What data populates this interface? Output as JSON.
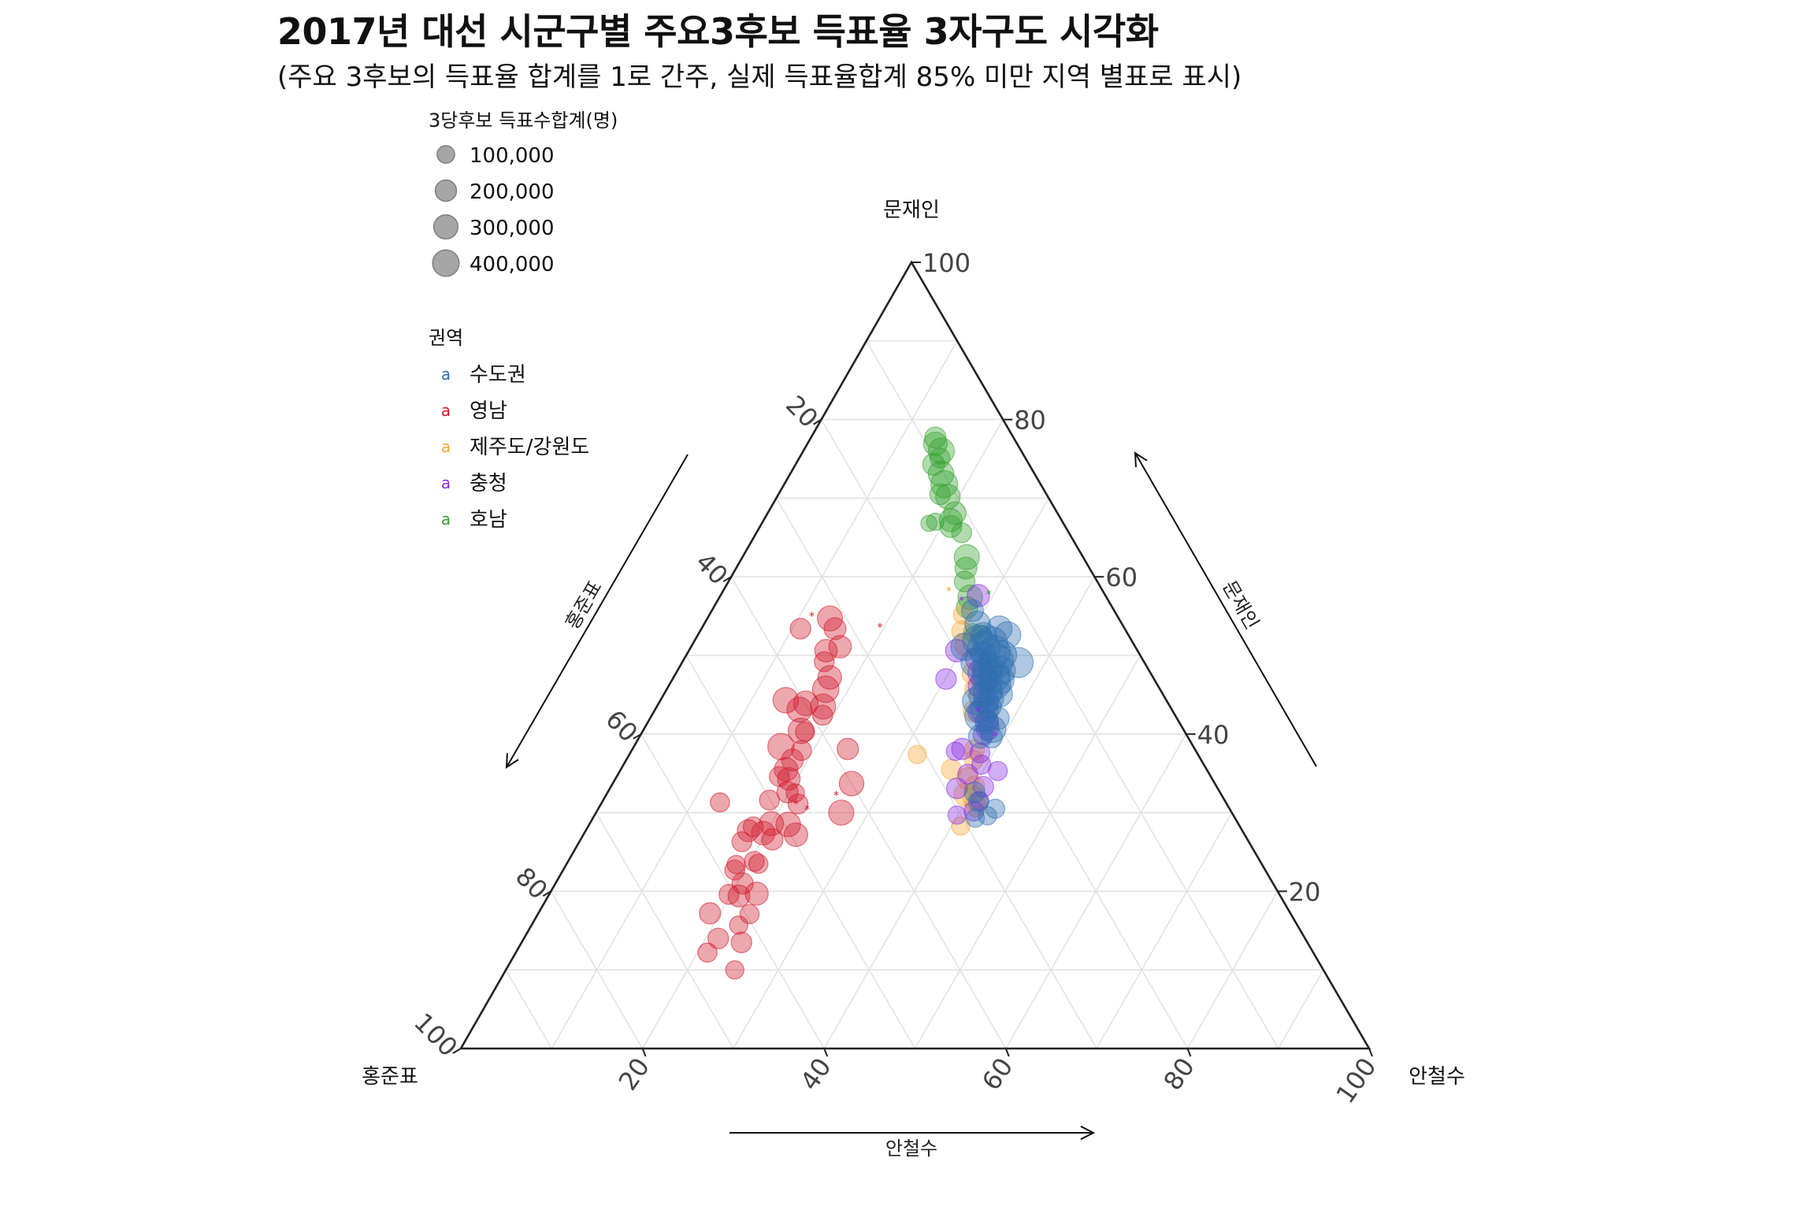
{
  "title": "2017년 대선 시군구별 주요3후보 득표율 3자구도 시각화",
  "subtitle": "(주요 3후보의 득표율 합계를 1로 간주, 실제 득표율합계 85% 미만 지역 별표로 표시)",
  "chart_data": {
    "type": "scatter",
    "subtype": "ternary-bubble",
    "axes": {
      "top": {
        "name": "문재인",
        "ticks": [
          20,
          40,
          60,
          80,
          100
        ]
      },
      "left": {
        "name": "홍준표",
        "ticks": [
          20,
          40,
          60,
          80,
          100
        ]
      },
      "right": {
        "name": "안철수",
        "ticks": [
          20,
          40,
          60,
          80,
          100
        ]
      }
    },
    "arrow_labels": {
      "left": "홍준표",
      "right": "문재인",
      "bottom": "안철수"
    },
    "grid": true,
    "grid_step": 10,
    "size_legend": {
      "title": "3당후보 득표수합계(명)",
      "entries": [
        "100,000",
        "200,000",
        "300,000",
        "400,000"
      ],
      "values": [
        100000,
        200000,
        300000,
        400000
      ],
      "color": "#a6a6a6"
    },
    "color_legend": {
      "title": "권역",
      "glyph": "a",
      "entries": [
        {
          "name": "수도권",
          "color": "#2f6fb0"
        },
        {
          "name": "영남",
          "color": "#d0182a"
        },
        {
          "name": "제주도/강원도",
          "color": "#f7a531"
        },
        {
          "name": "충청",
          "color": "#8a2be2"
        },
        {
          "name": "호남",
          "color": "#33a02c"
        }
      ]
    },
    "series": [
      {
        "name": "호남",
        "color": "#33a02c",
        "points": [
          [
            76.9,
            9.0,
            14.1,
            120000
          ],
          [
            77.7,
            8.6,
            13.7,
            80000
          ],
          [
            76.0,
            8.8,
            15.2,
            170000
          ],
          [
            75.1,
            9.4,
            15.5,
            60000
          ],
          [
            74.3,
            10.5,
            15.2,
            90000
          ],
          [
            73.1,
            10.3,
            16.6,
            160000
          ],
          [
            71.8,
            10.6,
            17.6,
            190000
          ],
          [
            70.2,
            11.0,
            18.8,
            140000
          ],
          [
            70.5,
            11.7,
            17.8,
            70000
          ],
          [
            68.1,
            11.3,
            20.6,
            100000
          ],
          [
            67.2,
            12.2,
            20.6,
            110000
          ],
          [
            66.4,
            12.6,
            21.0,
            90000
          ],
          [
            65.6,
            11.8,
            22.6,
            60000
          ],
          [
            62.5,
            12.8,
            24.7,
            150000
          ],
          [
            61.1,
            13.6,
            25.3,
            90000
          ],
          [
            59.4,
            14.6,
            26.0,
            70000
          ],
          [
            57.4,
            15.0,
            27.6,
            140000
          ],
          [
            56.1,
            16.0,
            27.9,
            80000
          ],
          [
            52.9,
            17.0,
            30.1,
            40000
          ],
          [
            52.6,
            16.1,
            31.3,
            50000
          ],
          [
            66.8,
            14.8,
            18.4,
            20000
          ],
          [
            67.0,
            14.0,
            19.0,
            30000
          ]
        ]
      },
      {
        "name": "영남",
        "color": "#d0182a",
        "points": [
          [
            54.7,
            31.8,
            13.5,
            150000
          ],
          [
            53.4,
            31.9,
            14.7,
            90000
          ],
          [
            51.1,
            32.5,
            16.4,
            100000
          ],
          [
            50.6,
            34.3,
            15.1,
            100000
          ],
          [
            49.2,
            35.2,
            15.6,
            60000
          ],
          [
            47.2,
            35.6,
            17.2,
            120000
          ],
          [
            45.7,
            36.8,
            17.5,
            180000
          ],
          [
            43.5,
            38.2,
            18.3,
            150000
          ],
          [
            44.3,
            41.9,
            13.8,
            160000
          ],
          [
            43.1,
            41.0,
            15.9,
            150000
          ],
          [
            43.9,
            39.9,
            16.2,
            140000
          ],
          [
            42.4,
            38.8,
            18.8,
            60000
          ],
          [
            40.3,
            41.8,
            17.9,
            50000
          ],
          [
            37.9,
            43.4,
            18.7,
            60000
          ],
          [
            36.7,
            45.0,
            18.3,
            90000
          ],
          [
            38.4,
            45.4,
            16.2,
            180000
          ],
          [
            35.5,
            46.3,
            18.2,
            120000
          ],
          [
            34.3,
            46.6,
            19.1,
            100000
          ],
          [
            32.6,
            47.6,
            19.8,
            80000
          ],
          [
            31.1,
            47.2,
            21.7,
            60000
          ],
          [
            31.6,
            50.1,
            18.3,
            60000
          ],
          [
            28.5,
            49.6,
            21.9,
            140000
          ],
          [
            28.6,
            51.4,
            20.0,
            130000
          ],
          [
            27.4,
            52.9,
            19.7,
            120000
          ],
          [
            26.6,
            52.3,
            21.1,
            80000
          ],
          [
            31.3,
            55.7,
            13.0,
            50000
          ],
          [
            27.7,
            54.4,
            17.9,
            90000
          ],
          [
            23.8,
            55.7,
            20.5,
            60000
          ],
          [
            23.4,
            57.9,
            18.7,
            40000
          ],
          [
            23.5,
            55.4,
            21.1,
            50000
          ],
          [
            21.0,
            58.4,
            20.6,
            80000
          ],
          [
            19.7,
            57.5,
            22.8,
            110000
          ],
          [
            19.4,
            59.6,
            21.0,
            90000
          ],
          [
            19.6,
            60.6,
            19.8,
            60000
          ],
          [
            17.1,
            59.6,
            23.3,
            50000
          ],
          [
            15.7,
            61.5,
            22.8,
            40000
          ],
          [
            13.5,
            62.3,
            24.2,
            70000
          ],
          [
            14.0,
            64.6,
            21.4,
            70000
          ],
          [
            10.0,
            64.8,
            25.2,
            40000
          ],
          [
            12.2,
            66.7,
            21.1,
            50000
          ],
          [
            30.0,
            43.0,
            27.0,
            150000
          ],
          [
            33.7,
            40.0,
            26.3,
            140000
          ],
          [
            40.4,
            42.2,
            17.4,
            160000
          ],
          [
            53.4,
            35.7,
            10.9,
            70000
          ],
          [
            34.6,
            47.5,
            17.9,
            60000
          ],
          [
            32.5,
            46.8,
            20.7,
            40000
          ],
          [
            27.2,
            49.4,
            23.4,
            120000
          ],
          [
            38.1,
            38.2,
            23.7,
            80000
          ],
          [
            26.3,
            55.8,
            17.9,
            60000
          ],
          [
            22.7,
            58.4,
            18.9,
            60000
          ],
          [
            17.2,
            63.9,
            18.9,
            80000
          ],
          [
            28.2,
            53.6,
            18.2,
            60000
          ]
        ]
      },
      {
        "name": "제주도/강원도",
        "color": "#f7a531",
        "points": [
          [
            38.0,
            24.3,
            37.7,
            60000
          ],
          [
            36.7,
            25.0,
            38.3,
            50000
          ],
          [
            34.3,
            26.9,
            38.8,
            90000
          ],
          [
            33.4,
            26.6,
            40.0,
            60000
          ],
          [
            32.3,
            28.2,
            39.5,
            100000
          ],
          [
            31.8,
            27.4,
            40.8,
            110000
          ],
          [
            30.8,
            27.8,
            41.4,
            70000
          ],
          [
            28.3,
            30.7,
            41.0,
            40000
          ],
          [
            35.5,
            28.1,
            36.4,
            60000
          ],
          [
            37.4,
            30.9,
            31.7,
            40000
          ],
          [
            55.2,
            16.9,
            27.9,
            50000
          ],
          [
            53.1,
            18.1,
            28.8,
            60000
          ],
          [
            51.4,
            18.4,
            30.2,
            120000
          ],
          [
            47.7,
            19.6,
            32.7,
            80000
          ],
          [
            45.7,
            20.4,
            33.9,
            60000
          ],
          [
            42.9,
            21.9,
            35.2,
            80000
          ]
        ]
      },
      {
        "name": "충청",
        "color": "#8a2be2",
        "points": [
          [
            57.6,
            14.0,
            28.4,
            100000
          ],
          [
            50.6,
            19.9,
            29.5,
            100000
          ],
          [
            49.5,
            18.2,
            32.3,
            120000
          ],
          [
            47.8,
            18.6,
            33.6,
            200000
          ],
          [
            46.1,
            19.6,
            34.3,
            130000
          ],
          [
            44.2,
            19.9,
            35.9,
            150000
          ],
          [
            42.8,
            21.4,
            35.8,
            90000
          ],
          [
            41.7,
            21.0,
            37.3,
            80000
          ],
          [
            40.7,
            21.5,
            37.8,
            110000
          ],
          [
            39.9,
            22.4,
            37.7,
            60000
          ],
          [
            38.1,
            25.6,
            36.3,
            80000
          ],
          [
            37.6,
            23.9,
            38.5,
            60000
          ],
          [
            36.1,
            24.5,
            39.4,
            50000
          ],
          [
            34.9,
            26.6,
            38.5,
            60000
          ],
          [
            33.3,
            25.7,
            41.0,
            70000
          ],
          [
            31.5,
            27.0,
            41.5,
            40000
          ],
          [
            30.2,
            28.3,
            41.5,
            60000
          ],
          [
            29.7,
            30.4,
            39.9,
            40000
          ],
          [
            33.1,
            28.7,
            38.2,
            70000
          ],
          [
            35.3,
            23.1,
            41.6,
            50000
          ],
          [
            37.8,
            26.5,
            35.7,
            40000
          ],
          [
            47.0,
            22.9,
            30.1,
            70000
          ]
        ]
      },
      {
        "name": "수도권",
        "color": "#2f6fb0",
        "points": [
          [
            55.7,
            15.6,
            28.7,
            90000
          ],
          [
            54.0,
            15.9,
            30.1,
            160000
          ],
          [
            51.5,
            15.7,
            32.8,
            400000
          ],
          [
            50.5,
            15.8,
            33.7,
            320000
          ],
          [
            49.3,
            16.2,
            34.5,
            400000
          ],
          [
            48.5,
            17.6,
            33.9,
            280000
          ],
          [
            49.1,
            18.6,
            32.3,
            250000
          ],
          [
            51.0,
            16.7,
            32.3,
            350000
          ],
          [
            51.1,
            18.8,
            30.1,
            200000
          ],
          [
            51.9,
            16.9,
            31.2,
            300000
          ],
          [
            52.5,
            16.0,
            31.5,
            180000
          ],
          [
            50.1,
            15.1,
            34.8,
            220000
          ],
          [
            47.7,
            18.0,
            34.3,
            280000
          ],
          [
            47.4,
            17.4,
            35.2,
            330000
          ],
          [
            47.0,
            18.6,
            34.4,
            200000
          ],
          [
            46.5,
            17.8,
            35.7,
            350000
          ],
          [
            45.4,
            19.1,
            35.5,
            250000
          ],
          [
            44.9,
            20.0,
            35.1,
            180000
          ],
          [
            44.5,
            19.2,
            36.3,
            150000
          ],
          [
            43.0,
            20.7,
            36.3,
            220000
          ],
          [
            42.3,
            21.5,
            36.2,
            300000
          ],
          [
            41.5,
            21.2,
            37.3,
            120000
          ],
          [
            40.6,
            21.0,
            38.4,
            180000
          ],
          [
            39.6,
            21.6,
            38.8,
            80000
          ],
          [
            49.1,
            13.9,
            37.0,
            280000
          ],
          [
            48.1,
            16.2,
            35.7,
            200000
          ],
          [
            53.4,
            13.8,
            32.8,
            160000
          ],
          [
            52.6,
            13.3,
            34.1,
            180000
          ],
          [
            46.9,
            17.0,
            36.1,
            220000
          ],
          [
            45.1,
            18.0,
            36.9,
            180000
          ],
          [
            43.5,
            19.9,
            36.6,
            120000
          ],
          [
            42.0,
            19.7,
            38.3,
            100000
          ],
          [
            29.6,
            27.1,
            43.3,
            40000
          ],
          [
            30.5,
            25.8,
            43.7,
            50000
          ],
          [
            31.4,
            27.2,
            41.4,
            60000
          ],
          [
            32.6,
            27.0,
            40.4,
            70000
          ],
          [
            29.3,
            28.6,
            42.1,
            40000
          ],
          [
            39.7,
            22.8,
            37.5,
            120000
          ],
          [
            44.2,
            21.0,
            34.8,
            200000
          ],
          [
            50.2,
            17.2,
            32.6,
            150000
          ]
        ]
      }
    ],
    "stars": [
      [
        54.9,
        33.7,
        11.4,
        "#d0182a"
      ],
      [
        53.5,
        26.9,
        19.6,
        "#d0182a"
      ],
      [
        31.0,
        47.5,
        21.5,
        "#d0182a"
      ],
      [
        30.3,
        46.6,
        23.1,
        "#d0182a"
      ],
      [
        32.1,
        42.5,
        25.4,
        "#d0182a"
      ],
      [
        58.1,
        17.0,
        24.9,
        "#f7a531"
      ],
      [
        57.7,
        12.8,
        29.5,
        "#33a02c"
      ],
      [
        56.9,
        16.2,
        26.9,
        "#8a2be2"
      ],
      [
        47.7,
        17.4,
        34.9,
        "#2f6fb0"
      ],
      [
        42.8,
        21.5,
        35.7,
        "#8a2be2"
      ],
      [
        39.7,
        21.2,
        39.1,
        "#8a2be2"
      ]
    ]
  }
}
